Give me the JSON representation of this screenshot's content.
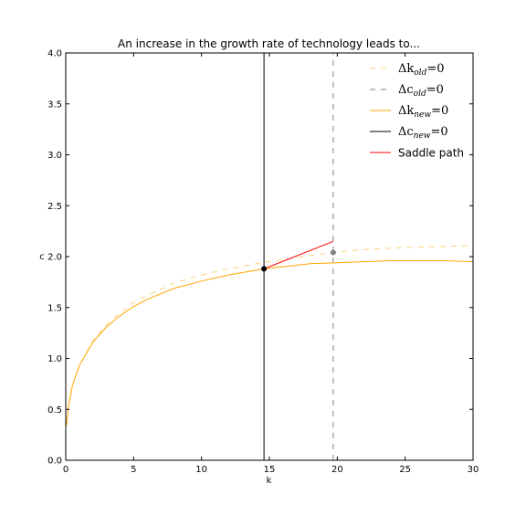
{
  "chart_data": {
    "type": "line",
    "title": "An increase in the growth rate of technology leads to...",
    "xlabel": "k",
    "ylabel": "c",
    "xlim": [
      0,
      30
    ],
    "ylim": [
      0,
      4
    ],
    "xticks": [
      "0",
      "5",
      "10",
      "15",
      "20",
      "25",
      "30"
    ],
    "yticks": [
      "0.0",
      "0.5",
      "1.0",
      "1.5",
      "2.0",
      "2.5",
      "3.0",
      "3.5",
      "4.0"
    ],
    "grid": false,
    "legend_position": "top-right",
    "colors": {
      "dk_old": "#ffa500",
      "dc_old": "#808080",
      "dk_new": "#ffa500",
      "dc_new": "#000000",
      "saddle": "#ff0000",
      "new_ss_point": "#000000",
      "old_ss_point": "#808080"
    },
    "series": [
      {
        "name": "Δk_old=0",
        "legend_main": "Δk",
        "legend_sub": "old",
        "legend_tail": "=0",
        "style": "dashed",
        "kind": "dk_old",
        "x": [
          0.05,
          0.2,
          0.5,
          1,
          2,
          3,
          4,
          5,
          6,
          8,
          10,
          12,
          14,
          16,
          18,
          19.7,
          22,
          25,
          28,
          30
        ],
        "y": [
          0.34,
          0.53,
          0.74,
          0.93,
          1.17,
          1.33,
          1.45,
          1.55,
          1.62,
          1.74,
          1.82,
          1.88,
          1.93,
          1.97,
          2.01,
          2.04,
          2.07,
          2.09,
          2.1,
          2.11
        ]
      },
      {
        "name": "Δc_old=0",
        "legend_main": "Δc",
        "legend_sub": "old",
        "legend_tail": "=0",
        "style": "dashed",
        "kind": "dc_old",
        "x": [
          19.7,
          19.7
        ],
        "y": [
          0,
          4
        ]
      },
      {
        "name": "Δk_new=0",
        "legend_main": "Δk",
        "legend_sub": "new",
        "legend_tail": "=0",
        "style": "solid",
        "kind": "dk_new",
        "x": [
          0.05,
          0.2,
          0.5,
          1,
          2,
          3,
          4,
          5,
          6,
          8,
          10,
          12,
          14.6,
          16,
          18,
          20,
          22,
          24,
          26,
          28,
          30
        ],
        "y": [
          0.34,
          0.53,
          0.74,
          0.93,
          1.16,
          1.31,
          1.42,
          1.51,
          1.58,
          1.69,
          1.76,
          1.82,
          1.88,
          1.9,
          1.93,
          1.94,
          1.95,
          1.96,
          1.96,
          1.96,
          1.95
        ]
      },
      {
        "name": "Δc_new=0",
        "legend_main": "Δc",
        "legend_sub": "new",
        "legend_tail": "=0",
        "style": "solid",
        "kind": "dc_new",
        "x": [
          14.6,
          14.6
        ],
        "y": [
          0,
          4
        ]
      },
      {
        "name": "Saddle path",
        "legend_plain": "Saddle path",
        "style": "solid",
        "kind": "saddle",
        "x": [
          14.6,
          19.7
        ],
        "y": [
          1.88,
          2.15
        ]
      }
    ],
    "points": [
      {
        "kind": "new_ss_point",
        "x": 14.6,
        "y": 1.88
      },
      {
        "kind": "old_ss_point",
        "x": 19.7,
        "y": 2.04
      }
    ]
  }
}
